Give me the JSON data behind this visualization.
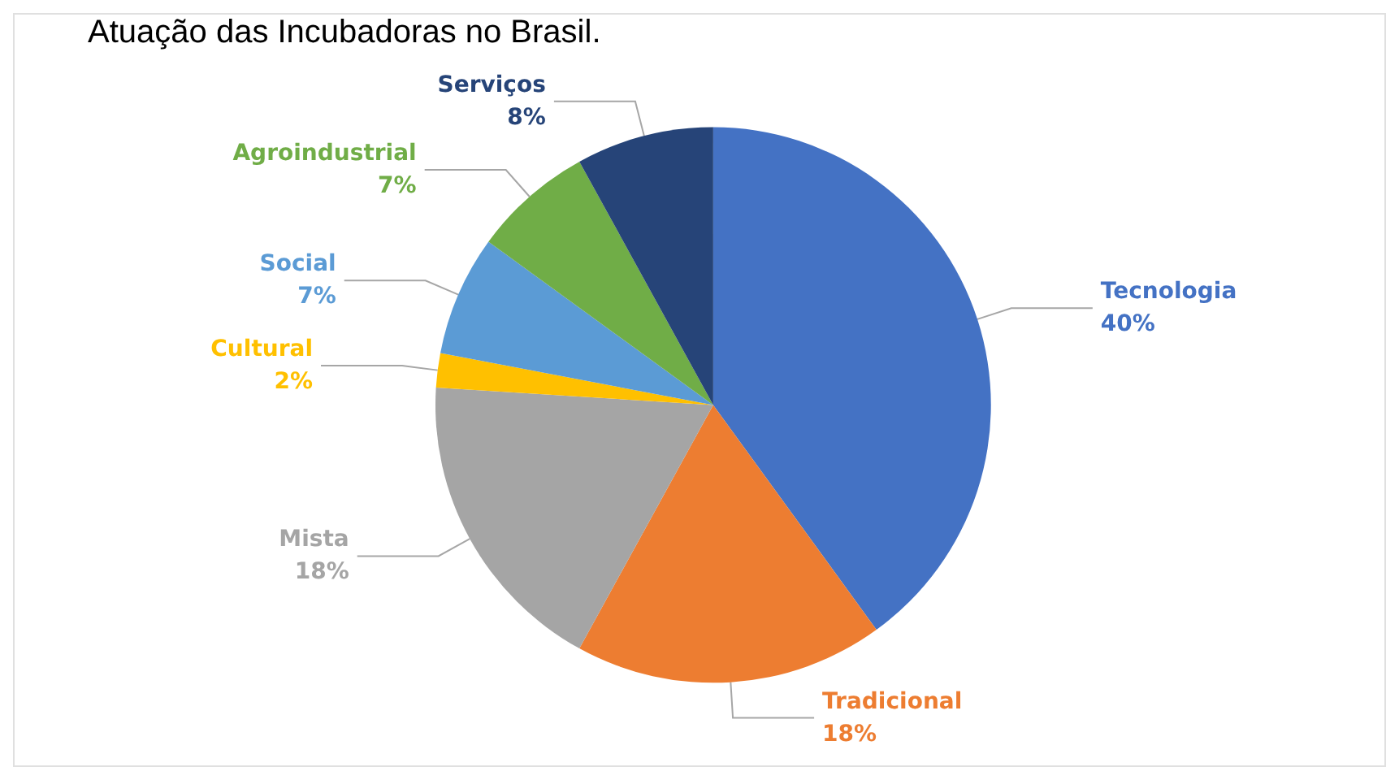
{
  "chart_data": {
    "type": "pie",
    "title": "Atuação das Incubadoras no Brasil.",
    "categories": [
      "Tecnologia",
      "Tradicional",
      "Mista",
      "Cultural",
      "Social",
      "Agroindustrial",
      "Serviços"
    ],
    "values": [
      40,
      18,
      18,
      2,
      7,
      7,
      8
    ],
    "colors": [
      "#4472c4",
      "#ed7d31",
      "#a5a5a5",
      "#ffc000",
      "#5b9bd5",
      "#70ad47",
      "#264478"
    ],
    "value_labels": [
      "40%",
      "18%",
      "18%",
      "2%",
      "7%",
      "7%",
      "8%"
    ],
    "legend": false
  }
}
